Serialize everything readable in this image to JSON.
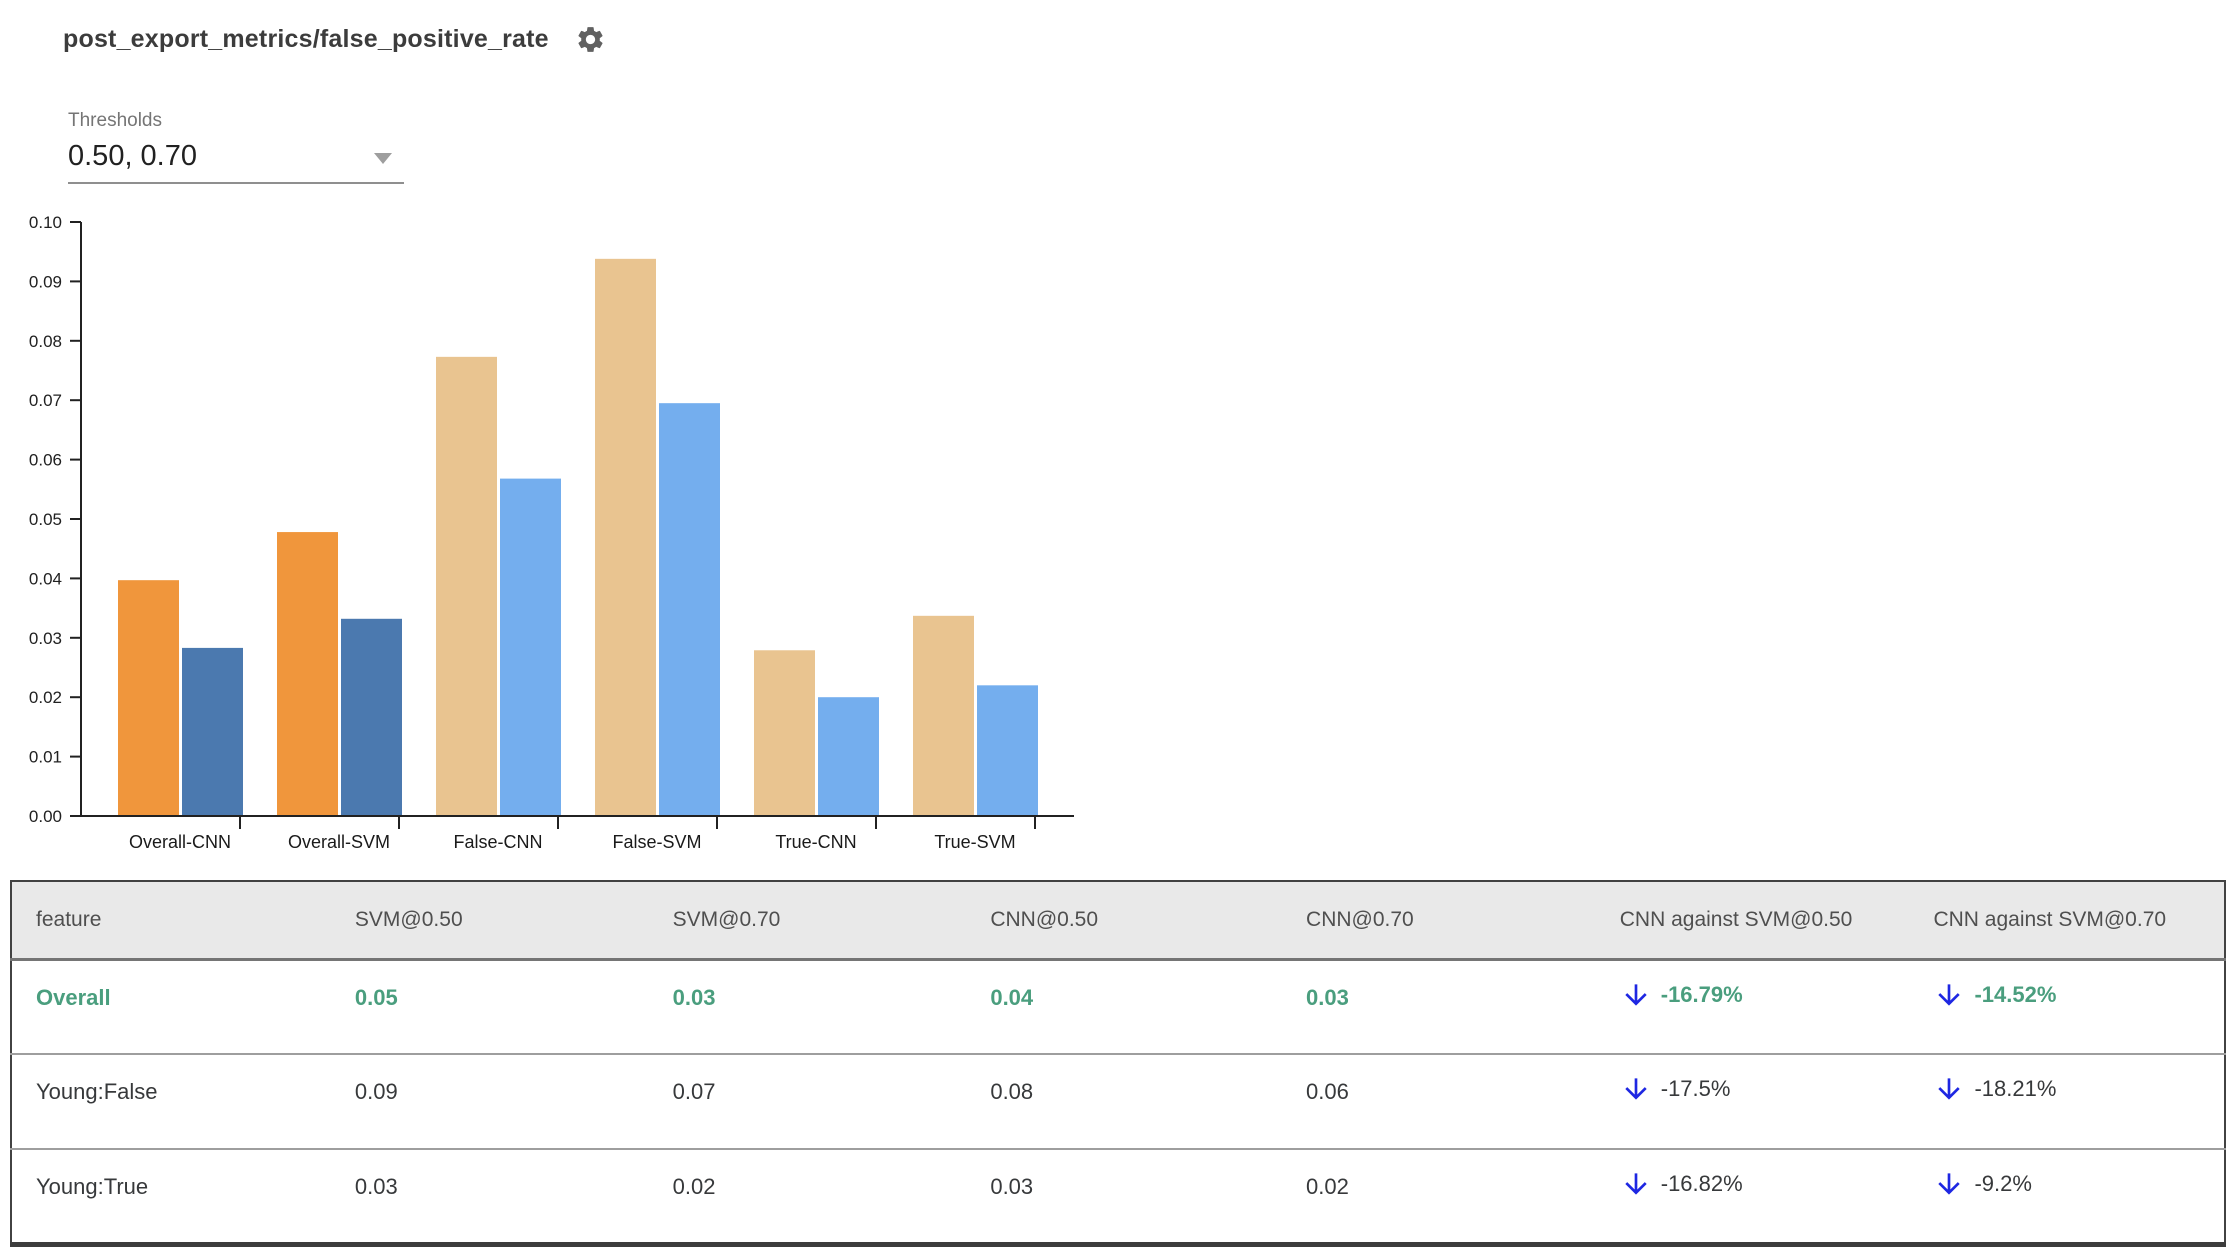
{
  "header": {
    "title": "post_export_metrics/false_positive_rate"
  },
  "threshold_control": {
    "label": "Thresholds",
    "value": "0.50, 0.70"
  },
  "chart_data": {
    "type": "bar",
    "title": "",
    "xlabel": "",
    "ylabel": "",
    "categories": [
      "Overall-CNN",
      "Overall-SVM",
      "False-CNN",
      "False-SVM",
      "True-CNN",
      "True-SVM"
    ],
    "series": [
      {
        "name": "threshold 0.50",
        "values": [
          0.0397,
          0.0478,
          0.0773,
          0.0938,
          0.0279,
          0.0337
        ],
        "colors": [
          "#f0963c",
          "#f0963c",
          "#e9c490",
          "#e9c490",
          "#e9c490",
          "#e9c490"
        ]
      },
      {
        "name": "threshold 0.70",
        "values": [
          0.0283,
          0.0332,
          0.0568,
          0.0695,
          0.02,
          0.022
        ],
        "colors": [
          "#4b79af",
          "#4b79af",
          "#74aeee",
          "#74aeee",
          "#74aeee",
          "#74aeee"
        ]
      }
    ],
    "ylim": [
      0,
      0.1
    ],
    "ytick_step": 0.01,
    "ytick_format_decimals": 2,
    "grid": false,
    "legend": "none"
  },
  "table": {
    "columns": [
      "feature",
      "SVM@0.50",
      "SVM@0.70",
      "CNN@0.50",
      "CNN@0.70",
      "CNN against SVM@0.50",
      "CNN against SVM@0.70"
    ],
    "rows": [
      {
        "feature": "Overall",
        "svm_050": "0.05",
        "svm_070": "0.03",
        "cnn_050": "0.04",
        "cnn_070": "0.03",
        "against_050": "-16.79%",
        "against_070": "-14.52%",
        "arrow": "down",
        "highlight": true
      },
      {
        "feature": "Young:False",
        "svm_050": "0.09",
        "svm_070": "0.07",
        "cnn_050": "0.08",
        "cnn_070": "0.06",
        "against_050": "-17.5%",
        "against_070": "-18.21%",
        "arrow": "down",
        "highlight": false
      },
      {
        "feature": "Young:True",
        "svm_050": "0.03",
        "svm_070": "0.02",
        "cnn_050": "0.03",
        "cnn_070": "0.02",
        "against_050": "-16.82%",
        "against_070": "-9.2%",
        "arrow": "down",
        "highlight": false
      }
    ]
  },
  "colors": {
    "accent_green": "#4a9e7e",
    "arrow_blue": "#1e27e2",
    "bar_orange": "#f0963c",
    "bar_dark_blue": "#4b79af",
    "bar_tan": "#e9c490",
    "bar_light_blue": "#74aeee",
    "header_bg": "#e9e9e9"
  }
}
